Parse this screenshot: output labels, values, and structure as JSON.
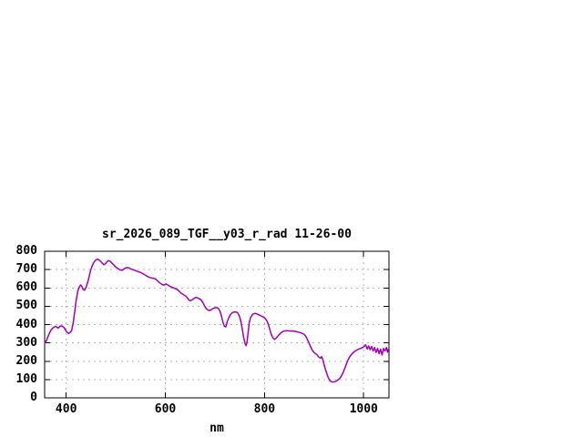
{
  "window": {
    "background": "#ffffff"
  },
  "chart_data": {
    "type": "line",
    "title": "sr_2026_089_TGF__y03_r_rad 11-26-00",
    "xlabel": "nm",
    "xlim": [
      356.5,
      1051
    ],
    "ylim": [
      0,
      800
    ],
    "xticks": [
      400,
      600,
      800,
      1000
    ],
    "yticks": [
      0,
      100,
      200,
      300,
      400,
      500,
      600,
      700,
      800
    ],
    "grid": true,
    "legend": "none",
    "colors": {
      "line": "#a000b4",
      "grid": "#b4b4b4",
      "axis": "#000000",
      "text": "#000000",
      "background": "#ffffff"
    },
    "series": [
      {
        "points": [
          [
            357,
            300
          ],
          [
            360,
            312
          ],
          [
            363,
            332
          ],
          [
            366,
            352
          ],
          [
            369,
            368
          ],
          [
            372,
            378
          ],
          [
            375,
            385
          ],
          [
            378,
            390
          ],
          [
            381,
            386
          ],
          [
            384,
            381
          ],
          [
            387,
            390
          ],
          [
            390,
            393
          ],
          [
            393,
            389
          ],
          [
            396,
            382
          ],
          [
            399,
            368
          ],
          [
            402,
            357
          ],
          [
            405,
            352
          ],
          [
            408,
            357
          ],
          [
            411,
            368
          ],
          [
            414,
            408
          ],
          [
            417,
            465
          ],
          [
            420,
            530
          ],
          [
            423,
            578
          ],
          [
            426,
            602
          ],
          [
            429,
            616
          ],
          [
            431,
            612
          ],
          [
            434,
            592
          ],
          [
            437,
            588
          ],
          [
            440,
            602
          ],
          [
            443,
            628
          ],
          [
            446,
            658
          ],
          [
            449,
            692
          ],
          [
            452,
            718
          ],
          [
            455,
            736
          ],
          [
            458,
            748
          ],
          [
            461,
            755
          ],
          [
            464,
            757
          ],
          [
            467,
            751
          ],
          [
            470,
            744
          ],
          [
            473,
            734
          ],
          [
            476,
            727
          ],
          [
            479,
            732
          ],
          [
            482,
            742
          ],
          [
            485,
            749
          ],
          [
            488,
            747
          ],
          [
            491,
            739
          ],
          [
            494,
            731
          ],
          [
            497,
            722
          ],
          [
            500,
            714
          ],
          [
            503,
            709
          ],
          [
            506,
            702
          ],
          [
            509,
            698
          ],
          [
            512,
            696
          ],
          [
            515,
            700
          ],
          [
            518,
            706
          ],
          [
            521,
            710
          ],
          [
            524,
            711
          ],
          [
            527,
            708
          ],
          [
            530,
            704
          ],
          [
            533,
            701
          ],
          [
            536,
            698
          ],
          [
            539,
            695
          ],
          [
            542,
            692
          ],
          [
            545,
            689
          ],
          [
            548,
            686
          ],
          [
            551,
            683
          ],
          [
            554,
            679
          ],
          [
            557,
            674
          ],
          [
            560,
            669
          ],
          [
            563,
            664
          ],
          [
            566,
            660
          ],
          [
            569,
            657
          ],
          [
            572,
            655
          ],
          [
            575,
            653
          ],
          [
            578,
            651
          ],
          [
            581,
            647
          ],
          [
            584,
            639
          ],
          [
            587,
            631
          ],
          [
            590,
            625
          ],
          [
            593,
            619
          ],
          [
            596,
            615
          ],
          [
            599,
            619
          ],
          [
            602,
            621
          ],
          [
            605,
            616
          ],
          [
            608,
            611
          ],
          [
            611,
            606
          ],
          [
            614,
            603
          ],
          [
            617,
            600
          ],
          [
            620,
            597
          ],
          [
            623,
            593
          ],
          [
            626,
            587
          ],
          [
            629,
            579
          ],
          [
            632,
            571
          ],
          [
            635,
            566
          ],
          [
            638,
            561
          ],
          [
            641,
            556
          ],
          [
            644,
            547
          ],
          [
            647,
            536
          ],
          [
            650,
            530
          ],
          [
            653,
            533
          ],
          [
            656,
            539
          ],
          [
            659,
            545
          ],
          [
            662,
            548
          ],
          [
            665,
            545
          ],
          [
            668,
            541
          ],
          [
            671,
            537
          ],
          [
            674,
            527
          ],
          [
            677,
            514
          ],
          [
            680,
            498
          ],
          [
            683,
            486
          ],
          [
            686,
            479
          ],
          [
            689,
            476
          ],
          [
            692,
            480
          ],
          [
            695,
            486
          ],
          [
            698,
            490
          ],
          [
            701,
            492
          ],
          [
            704,
            493
          ],
          [
            707,
            487
          ],
          [
            710,
            474
          ],
          [
            713,
            449
          ],
          [
            716,
            414
          ],
          [
            719,
            391
          ],
          [
            722,
            387
          ],
          [
            725,
            418
          ],
          [
            728,
            438
          ],
          [
            731,
            453
          ],
          [
            734,
            463
          ],
          [
            737,
            467
          ],
          [
            740,
            469
          ],
          [
            743,
            468
          ],
          [
            746,
            463
          ],
          [
            749,
            449
          ],
          [
            752,
            420
          ],
          [
            755,
            378
          ],
          [
            758,
            328
          ],
          [
            761,
            294
          ],
          [
            763,
            285
          ],
          [
            765,
            309
          ],
          [
            767,
            358
          ],
          [
            769,
            408
          ],
          [
            772,
            438
          ],
          [
            775,
            451
          ],
          [
            778,
            459
          ],
          [
            781,
            461
          ],
          [
            784,
            459
          ],
          [
            787,
            455
          ],
          [
            790,
            451
          ],
          [
            793,
            447
          ],
          [
            796,
            443
          ],
          [
            799,
            439
          ],
          [
            802,
            431
          ],
          [
            805,
            419
          ],
          [
            808,
            399
          ],
          [
            811,
            369
          ],
          [
            814,
            344
          ],
          [
            817,
            327
          ],
          [
            820,
            319
          ],
          [
            823,
            324
          ],
          [
            826,
            334
          ],
          [
            829,
            344
          ],
          [
            832,
            352
          ],
          [
            835,
            359
          ],
          [
            838,
            363
          ],
          [
            841,
            365
          ],
          [
            844,
            366
          ],
          [
            847,
            366
          ],
          [
            850,
            365
          ],
          [
            853,
            365
          ],
          [
            856,
            364
          ],
          [
            859,
            364
          ],
          [
            862,
            363
          ],
          [
            865,
            361
          ],
          [
            868,
            359
          ],
          [
            871,
            357
          ],
          [
            874,
            354
          ],
          [
            877,
            351
          ],
          [
            880,
            346
          ],
          [
            883,
            337
          ],
          [
            886,
            321
          ],
          [
            889,
            304
          ],
          [
            892,
            284
          ],
          [
            895,
            267
          ],
          [
            898,
            254
          ],
          [
            901,
            244
          ],
          [
            904,
            239
          ],
          [
            907,
            231
          ],
          [
            910,
            221
          ],
          [
            913,
            217
          ],
          [
            915,
            225
          ],
          [
            917,
            214
          ],
          [
            920,
            184
          ],
          [
            923,
            154
          ],
          [
            926,
            129
          ],
          [
            929,
            107
          ],
          [
            932,
            94
          ],
          [
            935,
            88
          ],
          [
            938,
            86
          ],
          [
            941,
            88
          ],
          [
            944,
            91
          ],
          [
            947,
            96
          ],
          [
            950,
            102
          ],
          [
            953,
            111
          ],
          [
            956,
            124
          ],
          [
            959,
            141
          ],
          [
            962,
            162
          ],
          [
            965,
            184
          ],
          [
            968,
            204
          ],
          [
            971,
            221
          ],
          [
            974,
            232
          ],
          [
            977,
            242
          ],
          [
            980,
            250
          ],
          [
            983,
            256
          ],
          [
            986,
            261
          ],
          [
            989,
            265
          ],
          [
            992,
            268
          ],
          [
            995,
            271
          ],
          [
            998,
            275
          ],
          [
            1001,
            281
          ],
          [
            1004,
            289
          ],
          [
            1007,
            267
          ],
          [
            1010,
            283
          ],
          [
            1013,
            263
          ],
          [
            1016,
            280
          ],
          [
            1019,
            256
          ],
          [
            1022,
            275
          ],
          [
            1025,
            248
          ],
          [
            1028,
            270
          ],
          [
            1031,
            241
          ],
          [
            1034,
            266
          ],
          [
            1037,
            234
          ],
          [
            1040,
            269
          ],
          [
            1043,
            256
          ],
          [
            1046,
            275
          ],
          [
            1048,
            249
          ],
          [
            1050,
            267
          ]
        ]
      }
    ]
  }
}
